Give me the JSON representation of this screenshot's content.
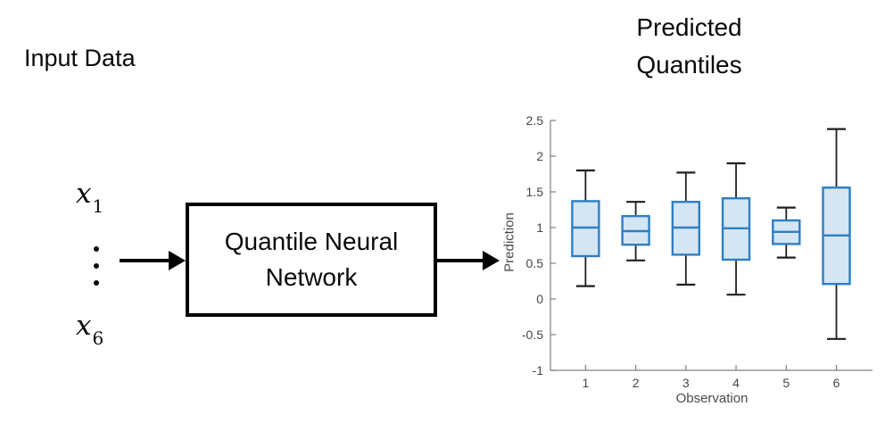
{
  "input_section": {
    "title": "Input Data",
    "x_first": {
      "base": "x",
      "sub": "1"
    },
    "x_last": {
      "base": "x",
      "sub": "6"
    }
  },
  "process_box": {
    "label_line1": "Quantile Neural",
    "label_line2": "Network"
  },
  "chart_data": {
    "type": "box",
    "title": "Predicted Quantiles",
    "title_line1": "Predicted",
    "title_line2": "Quantiles",
    "xlabel": "Observation",
    "ylabel": "Prediction",
    "categories": [
      1,
      2,
      3,
      4,
      5,
      6
    ],
    "series": [
      {
        "observation": 1,
        "whisker_low": 0.18,
        "q1": 0.6,
        "median": 1.0,
        "q3": 1.37,
        "whisker_high": 1.8
      },
      {
        "observation": 2,
        "whisker_low": 0.54,
        "q1": 0.76,
        "median": 0.95,
        "q3": 1.16,
        "whisker_high": 1.36
      },
      {
        "observation": 3,
        "whisker_low": 0.2,
        "q1": 0.62,
        "median": 1.0,
        "q3": 1.36,
        "whisker_high": 1.77
      },
      {
        "observation": 4,
        "whisker_low": 0.06,
        "q1": 0.55,
        "median": 0.99,
        "q3": 1.41,
        "whisker_high": 1.9
      },
      {
        "observation": 5,
        "whisker_low": 0.58,
        "q1": 0.77,
        "median": 0.94,
        "q3": 1.1,
        "whisker_high": 1.28
      },
      {
        "observation": 6,
        "whisker_low": -0.56,
        "q1": 0.21,
        "median": 0.89,
        "q3": 1.56,
        "whisker_high": 2.38
      }
    ],
    "ylim": [
      -1,
      2.5
    ],
    "xlim": [
      0.3,
      6.72
    ],
    "y_ticks": [
      -1,
      -0.5,
      0,
      0.5,
      1,
      1.5,
      2,
      2.5
    ],
    "y_tick_labels": [
      "-1",
      "-0.5",
      "0",
      "0.5",
      "1",
      "1.5",
      "2",
      "2.5"
    ],
    "x_ticks": [
      1,
      2,
      3,
      4,
      5,
      6
    ],
    "x_tick_labels": [
      "1",
      "2",
      "3",
      "4",
      "5",
      "6"
    ],
    "legend": "none",
    "grid": "off",
    "box_fill": "#D4E5F4",
    "box_edge": "#2E7EC4",
    "whisker_color": "#1f1f1f",
    "axis_color": "#808080",
    "tick_label_color": "#464646"
  }
}
